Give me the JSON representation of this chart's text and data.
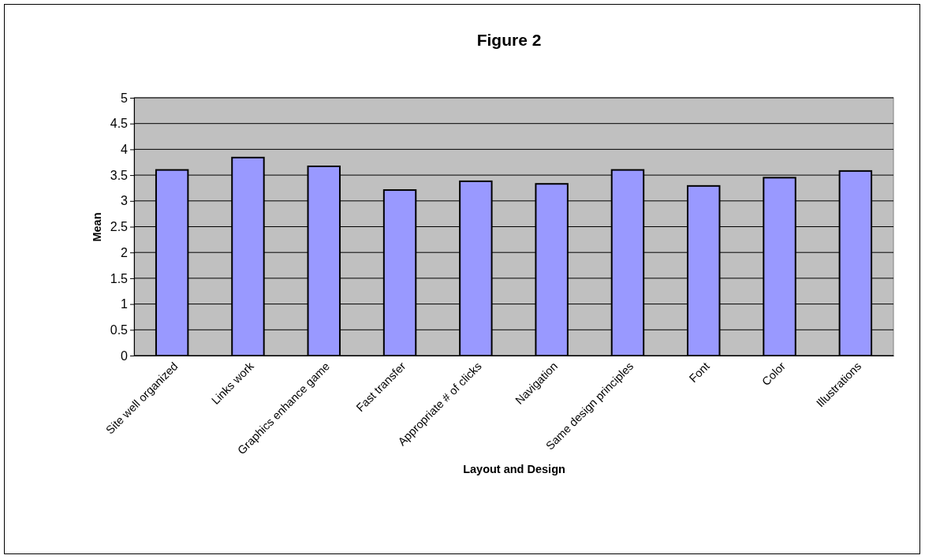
{
  "chart_data": {
    "type": "bar",
    "title": "Figure 2",
    "xlabel": "Layout and Design",
    "ylabel": "Mean",
    "categories": [
      "Site well organized",
      "Links work",
      "Graphics enhance game",
      "Fast transfer",
      "Appropriate # of clicks",
      "Navigation",
      "Same design principles",
      "Font",
      "Color",
      "Illustrations"
    ],
    "values": [
      3.6,
      3.84,
      3.67,
      3.21,
      3.38,
      3.33,
      3.6,
      3.29,
      3.45,
      3.58
    ],
    "color": "#9999ff",
    "ylim": [
      0,
      5
    ],
    "yticks": [
      0,
      0.5,
      1,
      1.5,
      2,
      2.5,
      3,
      3.5,
      4,
      4.5,
      5
    ],
    "grid": "y"
  }
}
